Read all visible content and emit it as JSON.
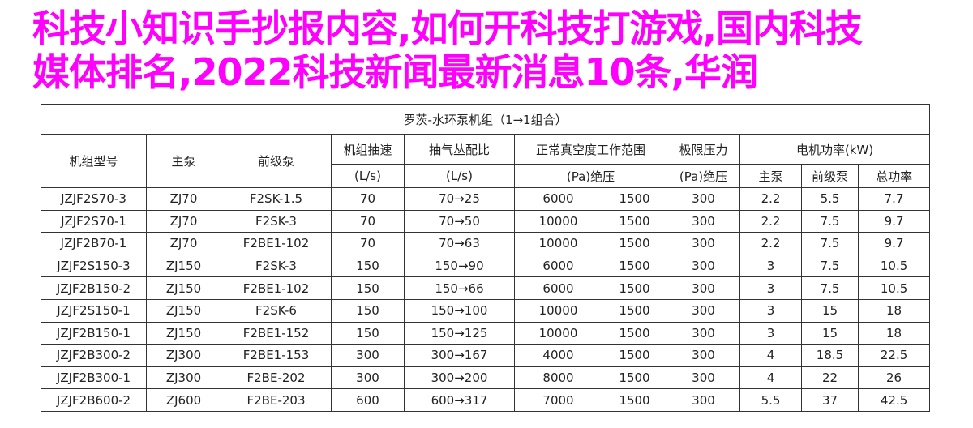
{
  "table": {
    "title": "罗茨-水环泵机组（1→1组合）",
    "headers": {
      "model": "机组型号",
      "main_pump": "主泵",
      "pre_pump": "前级泵",
      "speed": "机组抽速",
      "speed_unit": "(L/s)",
      "ratio": "抽气丛配比",
      "ratio_unit": "(L/s)",
      "vacuum_range": "正常真空度工作范围",
      "vacuum_unit": "(Pa)绝压",
      "limit_pressure": "极限压力",
      "limit_unit": "(Pa)绝压",
      "motor_power": "电机功率(kW)",
      "power_main": "主泵",
      "power_pre": "前级泵",
      "power_total": "总功率"
    },
    "rows": [
      [
        "JZJF2S70-3",
        "ZJ70",
        "F2SK-1.5",
        "70",
        "70→25",
        "6000",
        "1500",
        "300",
        "2.2",
        "5.5",
        "7.7"
      ],
      [
        "JZJF2S70-1",
        "ZJ70",
        "F2SK-3",
        "70",
        "70→50",
        "10000",
        "1500",
        "300",
        "2.2",
        "7.5",
        "9.7"
      ],
      [
        "JZJF2B70-1",
        "ZJ70",
        "F2BE1-102",
        "70",
        "70→63",
        "10000",
        "1500",
        "300",
        "2.2",
        "7.5",
        "9.7"
      ],
      [
        "JZJF2S150-3",
        "ZJ150",
        "F2SK-3",
        "150",
        "150→90",
        "6000",
        "1500",
        "300",
        "3",
        "7.5",
        "10.5"
      ],
      [
        "JZJF2B150-2",
        "ZJ150",
        "F2BE1-102",
        "150",
        "150→66",
        "6000",
        "1500",
        "300",
        "3",
        "7.5",
        "10.5"
      ],
      [
        "JZJF2S150-1",
        "ZJ150",
        "F2SK-6",
        "150",
        "150→100",
        "10000",
        "1500",
        "300",
        "3",
        "15",
        "18"
      ],
      [
        "JZJF2B150-1",
        "ZJ150",
        "F2BE1-152",
        "150",
        "150→125",
        "10000",
        "1500",
        "300",
        "3",
        "15",
        "18"
      ],
      [
        "JZJF2B300-2",
        "ZJ300",
        "F2BE1-153",
        "300",
        "300→167",
        "4000",
        "1500",
        "300",
        "4",
        "18.5",
        "22.5"
      ],
      [
        "JZJF2B300-1",
        "ZJ300",
        "F2BE-202",
        "300",
        "300→200",
        "8000",
        "1500",
        "300",
        "4",
        "22",
        "26"
      ],
      [
        "JZJF2B600-2",
        "ZJ600",
        "F2BE-203",
        "600",
        "600→317",
        "7000",
        "1500",
        "300",
        "5.5",
        "37",
        "42.5"
      ]
    ]
  },
  "overlay": {
    "line1": "科技小知识手抄报内容,如何开科技打游戏,国内科技",
    "line2": "媒体排名,2022科技新闻最新消息10条,华润",
    "color": "#ff00ff"
  }
}
